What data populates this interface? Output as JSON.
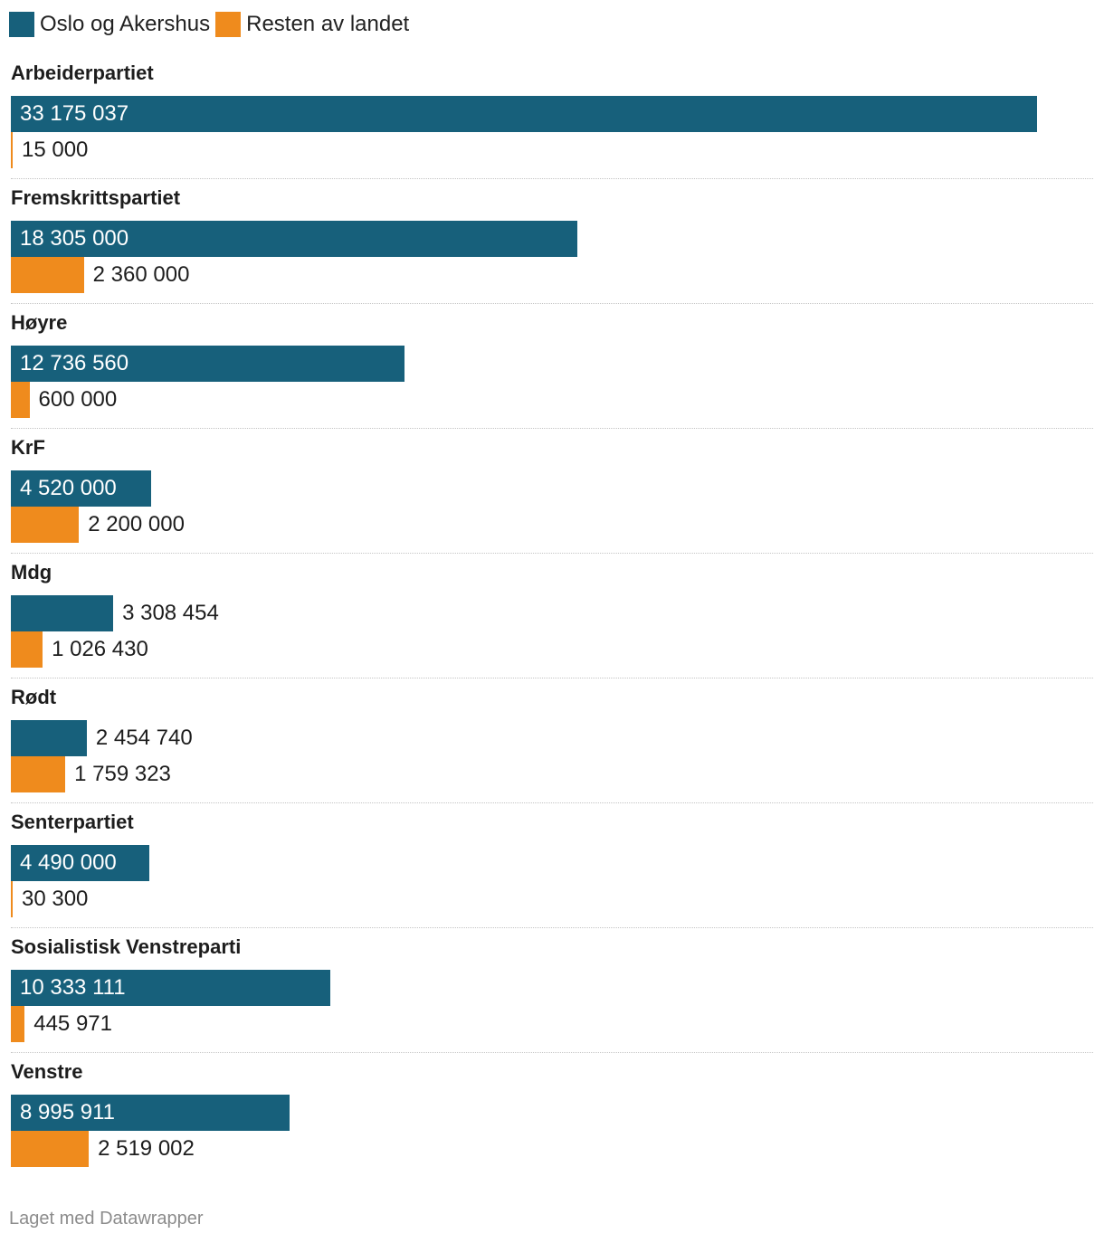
{
  "legend": [
    {
      "label": "Oslo og Akershus",
      "color": "#17607b"
    },
    {
      "label": "Resten av landet",
      "color": "#ef8b1d"
    }
  ],
  "chart_data": {
    "type": "bar",
    "orientation": "horizontal",
    "grouped": true,
    "categories": [
      "Arbeiderpartiet",
      "Fremskrittspartiet",
      "Høyre",
      "KrF",
      "Mdg",
      "Rødt",
      "Senterpartiet",
      "Sosialistisk Venstreparti",
      "Venstre"
    ],
    "series": [
      {
        "name": "Oslo og Akershus",
        "color": "#17607b",
        "values": [
          33175037,
          18305000,
          12736560,
          4520000,
          3308454,
          2454740,
          4490000,
          10333111,
          8995911
        ],
        "labels": [
          "33 175 037",
          "18 305 000",
          "12 736 560",
          "4 520 000",
          "3 308 454",
          "2 454 740",
          "4 490 000",
          "10 333 111",
          "8 995 911"
        ]
      },
      {
        "name": "Resten av landet",
        "color": "#ef8b1d",
        "values": [
          15000,
          2360000,
          600000,
          2200000,
          1026430,
          1759323,
          30300,
          445971,
          2519002
        ],
        "labels": [
          "15 000",
          "2 360 000",
          "600 000",
          "2 200 000",
          "1 026 430",
          "1 759 323",
          "30 300",
          "445 971",
          "2 519 002"
        ]
      }
    ],
    "xlim": [
      0,
      35000000
    ],
    "legend_position": "top-left"
  },
  "footer": "Laget med Datawrapper"
}
